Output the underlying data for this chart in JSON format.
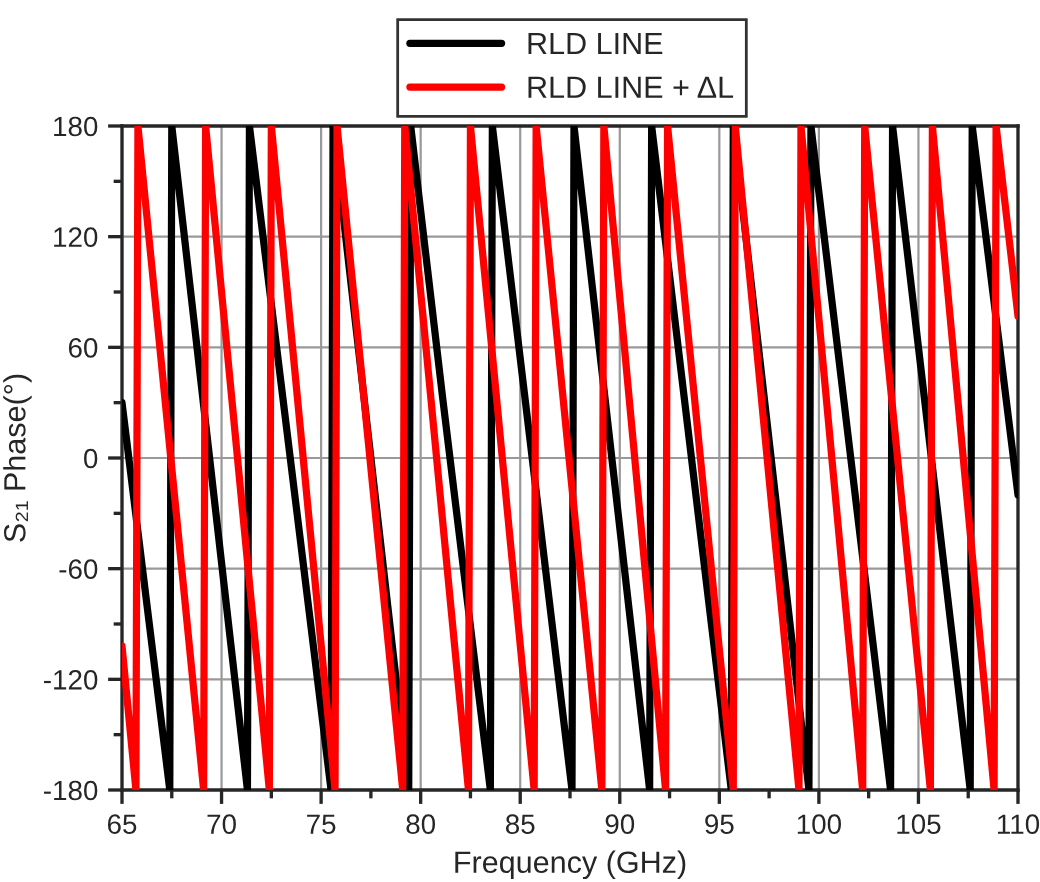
{
  "chart_data": {
    "type": "line",
    "xlabel": "Frequency (GHz)",
    "ylabel": "S₂₁ Phase(°)",
    "xlim": [
      65,
      110
    ],
    "xticks": [
      65,
      70,
      75,
      80,
      85,
      90,
      95,
      100,
      105,
      110
    ],
    "ylim": [
      -180,
      180
    ],
    "yticks": [
      -180,
      -120,
      -60,
      0,
      60,
      120,
      180
    ],
    "grid": true,
    "legend": "top",
    "marker": "none",
    "line_style": "solid",
    "series": [
      {
        "name": "RLD LINE",
        "color": "#000000",
        "x": [
          65,
          67.4,
          67.5,
          71.3,
          71.4,
          75.5,
          75.6,
          79.4,
          79.5,
          81.1,
          83.5,
          83.6,
          87.6,
          87.7,
          91.5,
          91.6,
          95.6,
          95.7,
          99.5,
          99.6,
          103.6,
          103.7,
          107.6,
          107.7,
          110
        ],
        "values": [
          30,
          -180,
          180,
          -180,
          180,
          -180,
          180,
          -180,
          180,
          33,
          -180,
          180,
          -180,
          180,
          -180,
          180,
          -180,
          180,
          -180,
          180,
          -180,
          180,
          -180,
          180,
          -20
        ]
      },
      {
        "name": "RLD LINE + ΔL",
        "color": "#ff0000",
        "x": [
          65,
          65.7,
          65.8,
          69.1,
          69.2,
          72.4,
          72.5,
          75.7,
          75.8,
          79.1,
          79.2,
          82.4,
          82.5,
          85.7,
          85.8,
          89.1,
          89.2,
          92.3,
          92.4,
          95.7,
          95.8,
          99.0,
          99.1,
          102.2,
          102.3,
          105.6,
          105.7,
          108.8,
          108.9,
          110
        ],
        "values": [
          -102,
          -180,
          180,
          -180,
          180,
          -180,
          180,
          -180,
          180,
          -180,
          180,
          -180,
          180,
          -180,
          180,
          -180,
          180,
          -180,
          180,
          -180,
          180,
          -180,
          180,
          -180,
          180,
          -180,
          180,
          -180,
          180,
          77
        ]
      }
    ]
  }
}
